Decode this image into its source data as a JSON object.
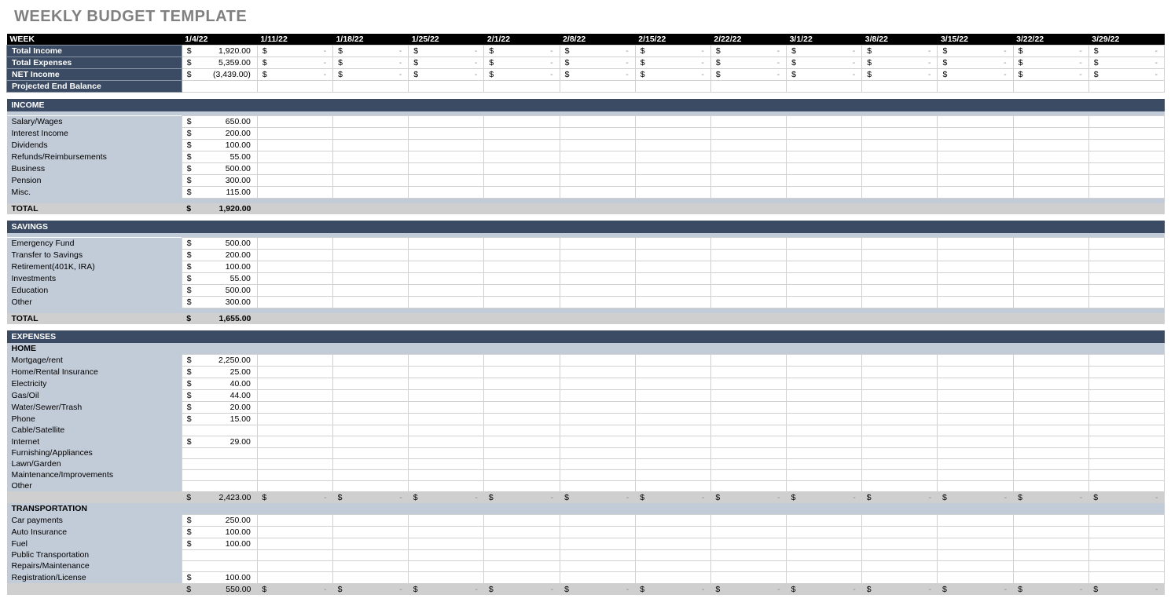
{
  "title": "WEEKLY BUDGET TEMPLATE",
  "colors": {
    "header_bg": "#000000",
    "header_fg": "#ffffff",
    "summary_bg": "#3b4b63",
    "summary_fg": "#ffffff",
    "section_bg": "#3b4b63",
    "block_bg": "#c2cbd8",
    "total_bg": "#cfcfcf",
    "cell_border": "#d0d0d0"
  },
  "weeks": [
    "1/4/22",
    "1/11/22",
    "1/18/22",
    "1/25/22",
    "2/1/22",
    "2/8/22",
    "2/15/22",
    "2/22/22",
    "3/1/22",
    "3/8/22",
    "3/15/22",
    "3/22/22",
    "3/29/22"
  ],
  "week_label": "WEEK",
  "currency_symbol": "$",
  "dash": "-",
  "summary": [
    {
      "label": "Total Income",
      "values": [
        "1,920.00",
        "-",
        "-",
        "-",
        "-",
        "-",
        "-",
        "-",
        "-",
        "-",
        "-",
        "-",
        "-"
      ]
    },
    {
      "label": "Total Expenses",
      "values": [
        "5,359.00",
        "-",
        "-",
        "-",
        "-",
        "-",
        "-",
        "-",
        "-",
        "-",
        "-",
        "-",
        "-"
      ]
    },
    {
      "label": "NET Income",
      "values": [
        "(3,439.00)",
        "-",
        "-",
        "-",
        "-",
        "-",
        "-",
        "-",
        "-",
        "-",
        "-",
        "-",
        "-"
      ]
    },
    {
      "label": "Projected End Balance",
      "values": [
        "",
        "",
        "",
        "",
        "",
        "",
        "",
        "",
        "",
        "",
        "",
        "",
        ""
      ]
    }
  ],
  "income": {
    "title": "INCOME",
    "rows": [
      {
        "label": "Salary/Wages",
        "value": "650.00"
      },
      {
        "label": "Interest Income",
        "value": "200.00"
      },
      {
        "label": "Dividends",
        "value": "100.00"
      },
      {
        "label": "Refunds/Reimbursements",
        "value": "55.00"
      },
      {
        "label": "Business",
        "value": "500.00"
      },
      {
        "label": "Pension",
        "value": "300.00"
      },
      {
        "label": "Misc.",
        "value": "115.00"
      }
    ],
    "total_label": "TOTAL",
    "total_value": "1,920.00",
    "extra_cols": 12
  },
  "savings": {
    "title": "SAVINGS",
    "rows": [
      {
        "label": "Emergency Fund",
        "value": "500.00"
      },
      {
        "label": "Transfer to Savings",
        "value": "200.00"
      },
      {
        "label": "Retirement(401K, IRA)",
        "value": "100.00"
      },
      {
        "label": "Investments",
        "value": "55.00"
      },
      {
        "label": "Education",
        "value": "500.00"
      },
      {
        "label": "Other",
        "value": "300.00"
      }
    ],
    "total_label": "TOTAL",
    "total_value": "1,655.00",
    "extra_cols": 12
  },
  "expenses": {
    "title": "EXPENSES",
    "groups": [
      {
        "title": "HOME",
        "rows": [
          {
            "label": "Mortgage/rent",
            "value": "2,250.00"
          },
          {
            "label": "Home/Rental Insurance",
            "value": "25.00"
          },
          {
            "label": "Electricity",
            "value": "40.00"
          },
          {
            "label": "Gas/Oil",
            "value": "44.00"
          },
          {
            "label": "Water/Sewer/Trash",
            "value": "20.00"
          },
          {
            "label": "Phone",
            "value": "15.00"
          },
          {
            "label": "Cable/Satellite",
            "value": ""
          },
          {
            "label": "Internet",
            "value": "29.00"
          },
          {
            "label": "Furnishing/Appliances",
            "value": ""
          },
          {
            "label": "Lawn/Garden",
            "value": ""
          },
          {
            "label": "Maintenance/Improvements",
            "value": ""
          },
          {
            "label": "Other",
            "value": ""
          }
        ],
        "subtotal": "2,423.00",
        "subtotal_dashes": 12
      },
      {
        "title": "TRANSPORTATION",
        "rows": [
          {
            "label": "Car payments",
            "value": "250.00"
          },
          {
            "label": "Auto Insurance",
            "value": "100.00"
          },
          {
            "label": "Fuel",
            "value": "100.00"
          },
          {
            "label": "Public Transportation",
            "value": ""
          },
          {
            "label": "Repairs/Maintenance",
            "value": ""
          },
          {
            "label": "Registration/License",
            "value": "100.00"
          }
        ],
        "subtotal": "550.00",
        "subtotal_dashes": 12
      }
    ]
  }
}
